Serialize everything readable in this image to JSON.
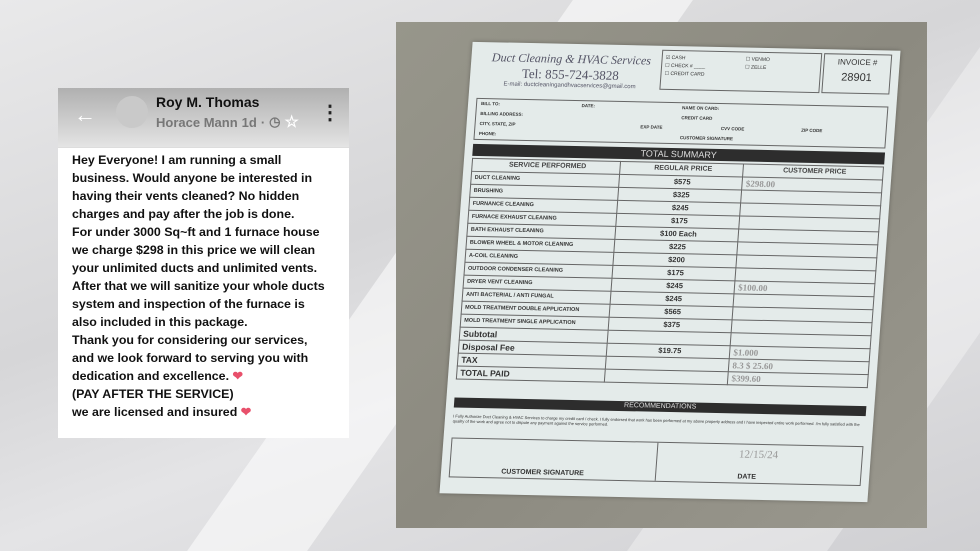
{
  "post": {
    "author": "Roy M. Thomas",
    "group": "Horace Mann",
    "time": "1d",
    "lines": [
      "Hey Everyone! I am running a small",
      "business. Would anyone be interested in",
      "having their vents cleaned? No hidden",
      "charges and pay after the job is done.",
      "For under 3000 Sq~ft and 1 furnace house",
      "we charge $298 in this price we will clean",
      "your unlimited ducts and unlimited vents.",
      "After that we will sanitize your whole ducts",
      "system and inspection of the furnace is",
      "also included in this package.",
      "Thank you for considering our services,",
      "and we look forward to serving you with",
      "dedication and excellence.",
      "(PAY AFTER THE SERVICE)",
      "we are licensed and insured"
    ],
    "icons": [
      "back-arrow-icon",
      "globe-icon",
      "star-icon",
      "more-icon",
      "heart-icon"
    ]
  },
  "invoice": {
    "company": "Duct Cleaning & HVAC Services",
    "tel": "Tel: 855-724-3828",
    "email": "E-mail: ductcleaningandhvacservices@gmail.com",
    "payment_options": [
      "CASH",
      "CHECK #",
      "CREDIT CARD",
      "VENMO",
      "ZELLE"
    ],
    "invoice_label": "INVOICE #",
    "invoice_number": "28901",
    "field_labels": [
      "BILL TO:",
      "DATE:",
      "BILLING ADDRESS:",
      "CITY, STATE, ZIP",
      "PHONE:",
      "NAME ON CARD:",
      "CREDIT CARD",
      "EXP DATE",
      "CVV CODE",
      "ZIP CODE",
      "CUSTOMER SIGNATURE"
    ],
    "total_summary": "TOTAL SUMMARY",
    "headers": [
      "SERVICE PERFORMED",
      "REGULAR PRICE",
      "CUSTOMER PRICE"
    ],
    "rows": [
      {
        "service": "DUCT CLEANING",
        "price": "$575",
        "customer": "$298.00"
      },
      {
        "service": "BRUSHING",
        "price": "$325",
        "customer": ""
      },
      {
        "service": "FURNANCE CLEANING",
        "price": "$245",
        "customer": ""
      },
      {
        "service": "FURNACE EXHAUST CLEANING",
        "price": "$175",
        "customer": ""
      },
      {
        "service": "BATH EXHAUST CLEANING",
        "price": "$100 Each",
        "customer": ""
      },
      {
        "service": "BLOWER WHEEL & MOTOR CLEANING",
        "price": "$225",
        "customer": ""
      },
      {
        "service": "A-COIL CLEANING",
        "price": "$200",
        "customer": ""
      },
      {
        "service": "OUTDOOR CONDENSER CLEANING",
        "price": "$175",
        "customer": ""
      },
      {
        "service": "DRYER VENT CLEANING",
        "price": "$245",
        "customer": "$100.00"
      },
      {
        "service": "ANTI BACTERIAL / ANTI FUNGAL",
        "price": "$245",
        "customer": ""
      },
      {
        "service": "MOLD TREATMENT DOUBLE APPLICATION",
        "price": "$565",
        "customer": ""
      },
      {
        "service": "MOLD TREATMENT SINGLE APPLICATION",
        "price": "$375",
        "customer": ""
      }
    ],
    "subtotal": "Subtotal",
    "disposal_label": "Disposal Fee",
    "disposal": "$19.75",
    "disposal_customer": "$1.000",
    "tax": "TAX",
    "tax_value": "8.3 $ 25.60",
    "total_label": "TOTAL PAID",
    "total_value": "$399.60",
    "recommendations": "RECOMMENDATIONS",
    "authorization": "I Fully Authorize Duct Cleaning & HVAC Services to charge my credit card / check. I fully endorsed that work has been performed at my above property address and I have inspected entire work performed. I'm fully satisfied with the quality of the work and agree not to dispute any payment against the service performed.",
    "signature_label": "CUSTOMER SIGNATURE",
    "date_label": "DATE",
    "date_value": "12/15/24"
  }
}
